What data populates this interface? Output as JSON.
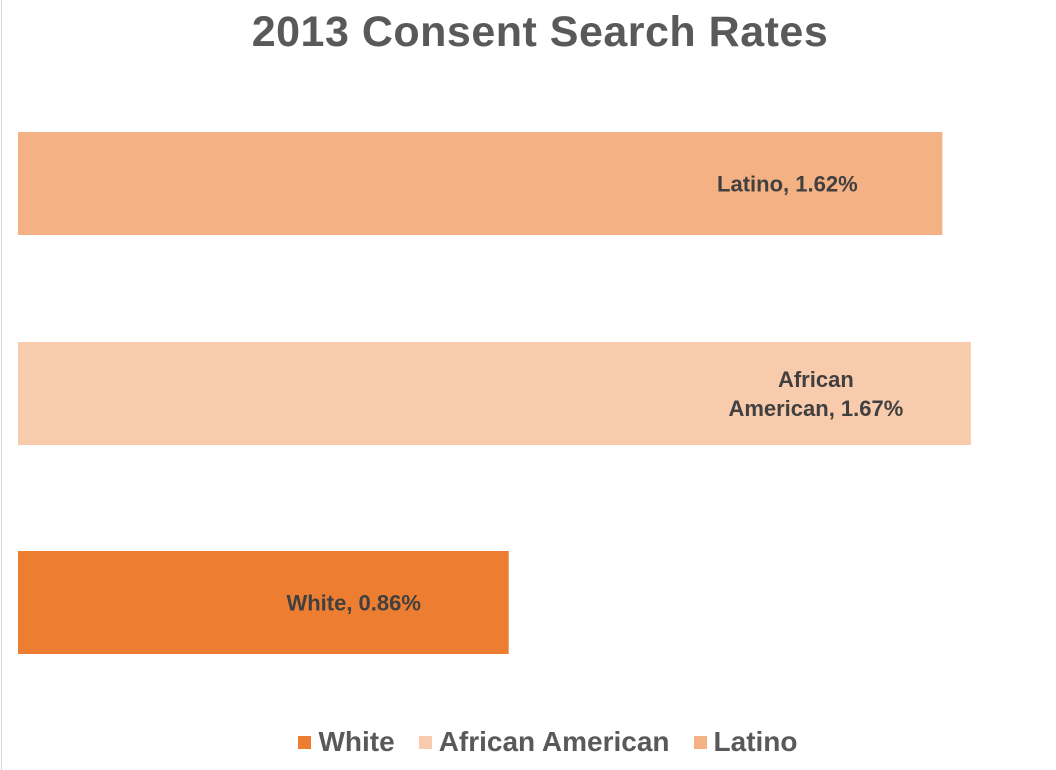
{
  "chart_data": {
    "type": "bar",
    "orientation": "horizontal",
    "title": "2013 Consent Search Rates",
    "categories": [
      "Latino",
      "African American",
      "White"
    ],
    "values": [
      1.62,
      1.67,
      0.86
    ],
    "value_suffix": "%",
    "data_labels": [
      [
        "Latino, 1.62%"
      ],
      [
        "African",
        "American, 1.67%"
      ],
      [
        "White, 0.86%"
      ]
    ],
    "colors": [
      "#f4b183",
      "#f8cbad",
      "#ed7d31"
    ],
    "xlim": [
      0,
      1.7
    ],
    "axes_visible": false,
    "grid": false,
    "legend_position": "bottom",
    "legend": [
      {
        "label": "White",
        "color": "#ed7d31"
      },
      {
        "label": "African American",
        "color": "#f8cbad"
      },
      {
        "label": "Latino",
        "color": "#f4b183"
      }
    ]
  }
}
